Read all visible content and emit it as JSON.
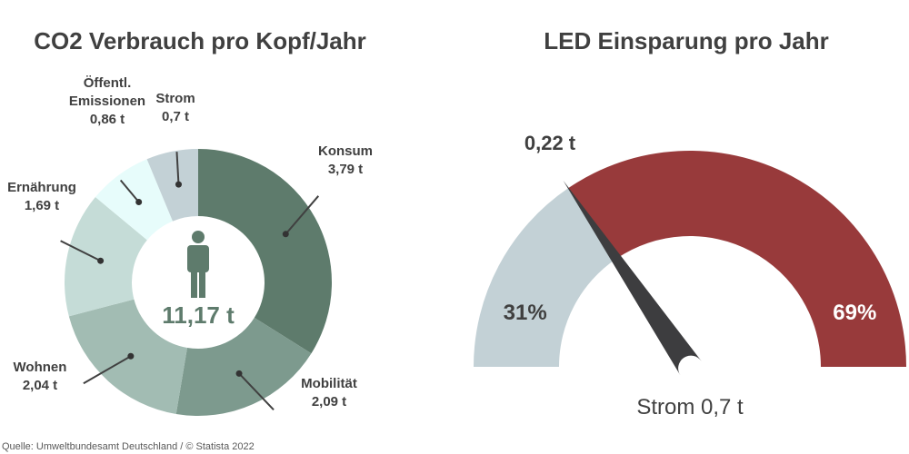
{
  "chart_data": [
    {
      "type": "pie",
      "variant": "donut",
      "title": "CO2 Verbrauch pro Kopf/Jahr",
      "center_label": "11,17 t",
      "slices": [
        {
          "label_lines": [
            "Konsum",
            "3,79 t"
          ],
          "value": 3.79,
          "color": "#5e7b6c"
        },
        {
          "label_lines": [
            "Mobilität",
            "2,09 t"
          ],
          "value": 2.09,
          "color": "#7d9a8e"
        },
        {
          "label_lines": [
            "Wohnen",
            "2,04 t"
          ],
          "value": 2.04,
          "color": "#a2bcb3"
        },
        {
          "label_lines": [
            "Ernährung",
            "1,69 t"
          ],
          "value": 1.69,
          "color": "#c5dcd7"
        },
        {
          "label_lines": [
            "Öffentl.",
            "Emissionen",
            "0,86 t"
          ],
          "value": 0.86,
          "color": "#e7fcfb"
        },
        {
          "label_lines": [
            "Strom",
            "0,7 t"
          ],
          "value": 0.7,
          "color": "#c3d1d6"
        }
      ]
    },
    {
      "type": "pie",
      "variant": "gauge",
      "title": "LED Einsparung pro Jahr",
      "needle_label": "0,22 t",
      "bottom_label": "Strom 0,7 t",
      "segments": [
        {
          "label": "31%",
          "value": 31,
          "color": "#c3d1d6"
        },
        {
          "label": "69%",
          "value": 69,
          "color": "#983a3b"
        }
      ]
    }
  ],
  "source": "Quelle: Umweltbundesamt Deutschland / © Statista 2022",
  "colors": {
    "person_icon": "#5e7b6c",
    "center_text": "#5e7b6c",
    "needle": "#3d3d3f"
  }
}
